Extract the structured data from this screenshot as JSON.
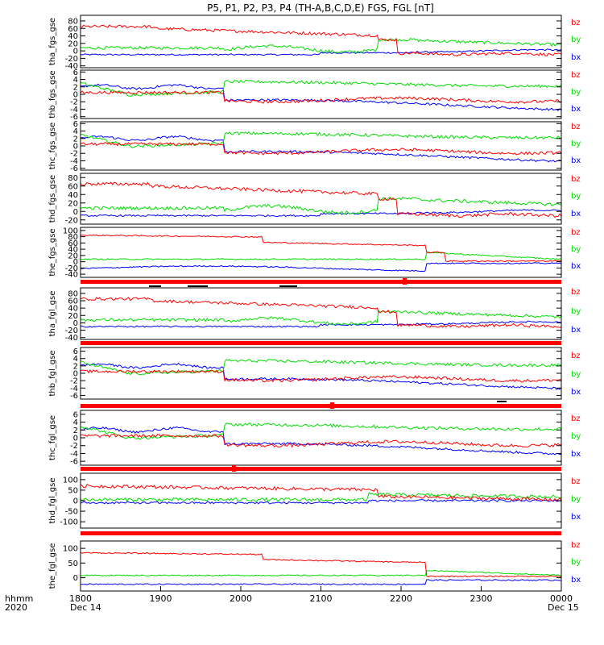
{
  "title": "P5, P1, P2, P3, P4 (TH-A,B,C,D,E) FGS, FGL [nT]",
  "colors": {
    "bx": "#0000ff",
    "by": "#00dd00",
    "bz": "#ff0000",
    "axis": "#000000",
    "bar": "#ff0000"
  },
  "x_axis": {
    "row1_label": "hhmm",
    "row2_label": "2020",
    "ticks": [
      "1800",
      "1900",
      "2000",
      "2100",
      "2200",
      "2300",
      "0000"
    ],
    "date_start": "Dec 14",
    "date_end": "Dec 15"
  },
  "chart_data": [
    {
      "type": "line",
      "ylabel": "tha_fgs_gse",
      "ylim": [
        -45,
        95
      ],
      "yticks": [
        "80",
        "60",
        "40",
        "20",
        "0",
        "-20",
        "-40"
      ],
      "legend": [
        "bz",
        "by",
        "bx"
      ]
    },
    {
      "type": "line",
      "ylabel": "thb_fgs_gse",
      "ylim": [
        -6.5,
        6.5
      ],
      "yticks": [
        "6",
        "4",
        "2",
        "0",
        "-2",
        "-4",
        "-6"
      ],
      "legend": [
        "bz",
        "by",
        "bx"
      ]
    },
    {
      "type": "line",
      "ylabel": "thc_fgs_gse",
      "ylim": [
        -6.5,
        6.5
      ],
      "yticks": [
        "6",
        "4",
        "2",
        "0",
        "-2",
        "-4",
        "-6"
      ],
      "legend": [
        "bz",
        "by",
        "bx"
      ]
    },
    {
      "type": "line",
      "ylabel": "thd_fgs_gse",
      "ylim": [
        -30,
        90
      ],
      "yticks": [
        "80",
        "60",
        "40",
        "20",
        "0",
        "-20"
      ],
      "legend": [
        "bz",
        "by",
        "bx"
      ]
    },
    {
      "type": "line",
      "ylabel": "the_fgs_gse",
      "ylim": [
        -50,
        110
      ],
      "yticks": [
        "100",
        "80",
        "60",
        "40",
        "20",
        "0",
        "-20",
        "-40"
      ],
      "legend": [
        "bz",
        "by",
        "bx"
      ]
    },
    {
      "type": "line",
      "ylabel": "tha_fgl_gse",
      "ylim": [
        -45,
        95
      ],
      "yticks": [
        "80",
        "60",
        "40",
        "20",
        "0",
        "-20",
        "-40"
      ],
      "legend": [
        "bz",
        "by",
        "bx"
      ]
    },
    {
      "type": "line",
      "ylabel": "thb_fgl_gse",
      "ylim": [
        -7,
        7
      ],
      "yticks": [
        "6",
        "4",
        "2",
        "0",
        "-2",
        "-4",
        "-6"
      ],
      "legend": [
        "bz",
        "by",
        "bx"
      ]
    },
    {
      "type": "line",
      "ylabel": "thc_fgl_gse",
      "ylim": [
        -7,
        7
      ],
      "yticks": [
        "6",
        "4",
        "2",
        "0",
        "-2",
        "-4",
        "-6"
      ],
      "legend": [
        "bz",
        "by",
        "bx"
      ]
    },
    {
      "type": "line",
      "ylabel": "thd_fgl_gse",
      "ylim": [
        -130,
        130
      ],
      "yticks": [
        "100",
        "50",
        "0",
        "-50",
        "-100"
      ],
      "legend": [
        "bz",
        "by",
        "bx"
      ]
    },
    {
      "type": "line",
      "ylabel": "the_fgl_gse",
      "ylim": [
        -45,
        125
      ],
      "yticks": [
        "100",
        "50",
        "0"
      ],
      "legend": [
        "bz",
        "by",
        "bx"
      ]
    }
  ]
}
